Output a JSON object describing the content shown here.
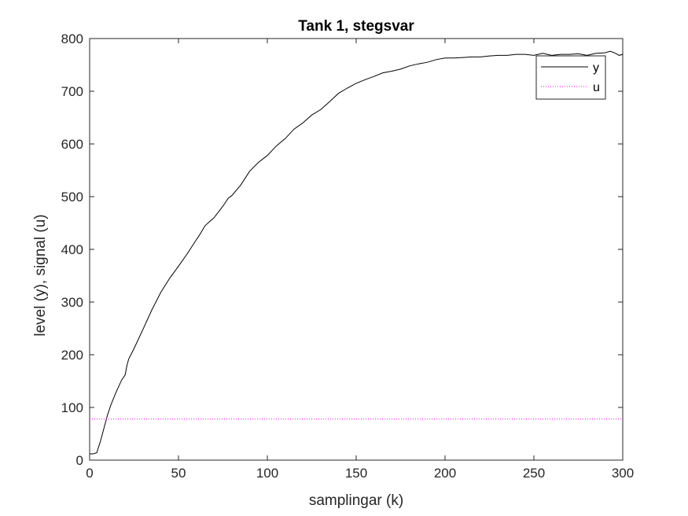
{
  "chart_data": {
    "type": "line",
    "title": "Tank 1, stegsvar",
    "xlabel": "samplingar (k)",
    "ylabel": "level (y), signal (u)",
    "xlim": [
      0,
      300
    ],
    "ylim": [
      0,
      800
    ],
    "xticks": [
      0,
      50,
      100,
      150,
      200,
      250,
      300
    ],
    "yticks": [
      0,
      100,
      200,
      300,
      400,
      500,
      600,
      700,
      800
    ],
    "grid": false,
    "legend_position": "top-right",
    "series": [
      {
        "name": "y",
        "color": "#000000",
        "style": "solid",
        "x": [
          0,
          2,
          4,
          6,
          8,
          10,
          12,
          15,
          18,
          20,
          21,
          22,
          25,
          30,
          35,
          40,
          45,
          50,
          55,
          60,
          62,
          65,
          70,
          75,
          78,
          80,
          85,
          90,
          95,
          100,
          105,
          110,
          115,
          120,
          125,
          130,
          135,
          140,
          145,
          150,
          155,
          160,
          165,
          170,
          175,
          180,
          185,
          190,
          195,
          200,
          205,
          210,
          215,
          220,
          225,
          230,
          235,
          240,
          245,
          250,
          255,
          260,
          265,
          270,
          275,
          280,
          285,
          290,
          293,
          296,
          298,
          300
        ],
        "y": [
          12,
          12,
          14,
          35,
          60,
          85,
          105,
          130,
          152,
          162,
          180,
          192,
          212,
          248,
          285,
          318,
          345,
          368,
          392,
          418,
          428,
          445,
          460,
          482,
          497,
          502,
          522,
          548,
          565,
          578,
          596,
          610,
          628,
          640,
          655,
          665,
          680,
          696,
          706,
          715,
          722,
          728,
          735,
          738,
          742,
          748,
          752,
          755,
          760,
          763,
          763,
          764,
          765,
          765,
          767,
          768,
          768,
          770,
          770,
          768,
          772,
          768,
          770,
          770,
          771,
          768,
          772,
          773,
          776,
          772,
          768,
          770
        ]
      },
      {
        "name": "u",
        "color": "#ff00ff",
        "style": "dotted",
        "x": [
          0,
          300
        ],
        "y": [
          78,
          78
        ]
      }
    ]
  }
}
